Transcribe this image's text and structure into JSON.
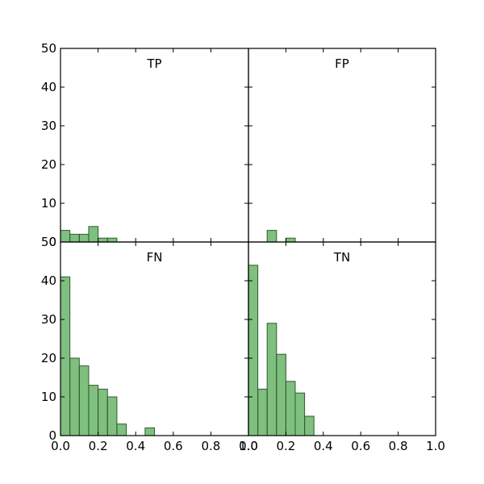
{
  "chart_data": [
    {
      "type": "bar",
      "title": "TP",
      "bin_width": 0.05,
      "bin_starts": [
        0.0,
        0.05,
        0.1,
        0.15,
        0.2,
        0.25
      ],
      "values": [
        3,
        2,
        2,
        4,
        1,
        1
      ],
      "xlim": [
        0.0,
        1.0
      ],
      "ylim": [
        0,
        50
      ]
    },
    {
      "type": "bar",
      "title": "FP",
      "bin_width": 0.05,
      "bin_starts": [
        0.1,
        0.2
      ],
      "values": [
        3,
        1
      ],
      "xlim": [
        0.0,
        1.0
      ],
      "ylim": [
        0,
        50
      ]
    },
    {
      "type": "bar",
      "title": "FN",
      "bin_width": 0.05,
      "bin_starts": [
        0.0,
        0.05,
        0.1,
        0.15,
        0.2,
        0.25,
        0.3,
        0.45
      ],
      "values": [
        41,
        20,
        18,
        13,
        12,
        10,
        3,
        2
      ],
      "xlim": [
        0.0,
        1.0
      ],
      "ylim": [
        0,
        50
      ]
    },
    {
      "type": "bar",
      "title": "TN",
      "bin_width": 0.05,
      "bin_starts": [
        0.0,
        0.05,
        0.1,
        0.15,
        0.2,
        0.25,
        0.3
      ],
      "values": [
        44,
        12,
        29,
        21,
        14,
        11,
        5
      ],
      "xlim": [
        0.0,
        1.0
      ],
      "ylim": [
        0,
        50
      ]
    }
  ],
  "axes": {
    "y_ticks": [
      "0",
      "10",
      "20",
      "30",
      "40",
      "50"
    ],
    "x_ticks": [
      "0.0",
      "0.2",
      "0.4",
      "0.6",
      "0.8",
      "1.0"
    ]
  },
  "colors": {
    "bar_fill": "#008000",
    "bar_edge": "#2e5c2e"
  }
}
